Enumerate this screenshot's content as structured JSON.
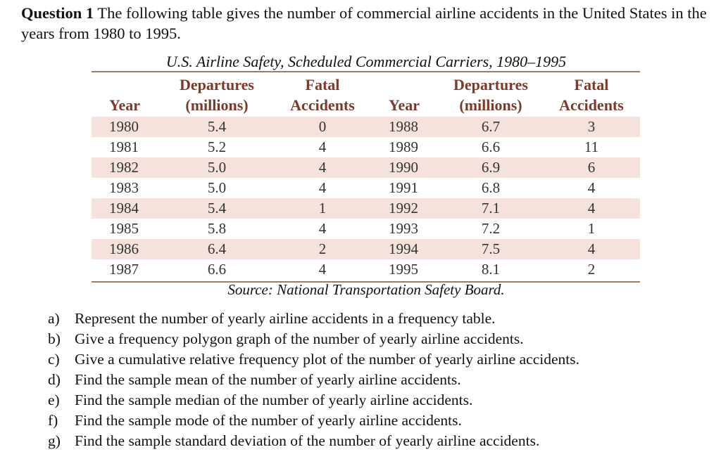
{
  "question": {
    "title": "Question 1",
    "text": "The following table gives the number of commercial airline accidents in the United States in the years from 1980 to 1995."
  },
  "table": {
    "caption": "U.S. Airline Safety, Scheduled Commercial Carriers, 1980–1995",
    "headers": [
      [
        "Year"
      ],
      [
        "Departures",
        "(millions)"
      ],
      [
        "Fatal",
        "Accidents"
      ],
      [
        "Year"
      ],
      [
        "Departures",
        "(millions)"
      ],
      [
        "Fatal",
        "Accidents"
      ]
    ],
    "rows": [
      [
        "1980",
        "5.4",
        "0",
        "1988",
        "6.7",
        "3"
      ],
      [
        "1981",
        "5.2",
        "4",
        "1989",
        "6.6",
        "11"
      ],
      [
        "1982",
        "5.0",
        "4",
        "1990",
        "6.9",
        "6"
      ],
      [
        "1983",
        "5.0",
        "4",
        "1991",
        "6.8",
        "4"
      ],
      [
        "1984",
        "5.4",
        "1",
        "1992",
        "7.1",
        "4"
      ],
      [
        "1985",
        "5.8",
        "4",
        "1993",
        "7.2",
        "1"
      ],
      [
        "1986",
        "6.4",
        "2",
        "1994",
        "7.5",
        "4"
      ],
      [
        "1987",
        "6.6",
        "4",
        "1995",
        "8.1",
        "2"
      ]
    ],
    "source": "Source: National Transportation Safety Board."
  },
  "items": [
    {
      "label": "a)",
      "text": "Represent the number of yearly airline accidents in a frequency table."
    },
    {
      "label": "b)",
      "text": "Give a frequency polygon graph of the number of yearly airline accidents."
    },
    {
      "label": "c)",
      "text": "Give a cumulative relative frequency plot of the number of yearly airline accidents."
    },
    {
      "label": "d)",
      "text": "Find the sample mean of the number of yearly airline accidents."
    },
    {
      "label": "e)",
      "text": "Find the sample median of the number of yearly airline accidents."
    },
    {
      "label": "f)",
      "text": "Find the sample mode of the number of yearly airline accidents."
    },
    {
      "label": "g)",
      "text": "Find the sample standard deviation of the number of yearly airline accidents."
    }
  ]
}
